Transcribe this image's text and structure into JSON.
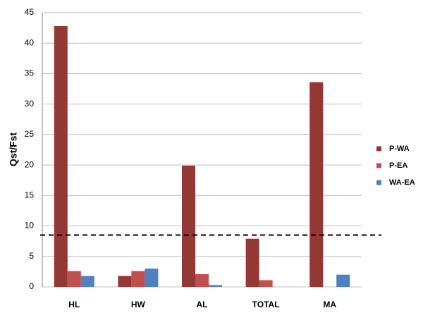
{
  "chart_data": {
    "type": "bar",
    "y_label": "Qst/Fst",
    "categories": [
      "HL",
      "HW",
      "AL",
      "TOTAL",
      "MA"
    ],
    "series": [
      {
        "name": "P-WA",
        "color": "#953735",
        "values": [
          42.8,
          1.8,
          19.9,
          7.9,
          33.6
        ]
      },
      {
        "name": "P-EA",
        "color": "#c0504d",
        "values": [
          2.6,
          2.6,
          2.1,
          1.1,
          0
        ]
      },
      {
        "name": "WA-EA",
        "color": "#4f81bd",
        "values": [
          1.8,
          3.0,
          0.3,
          0,
          2.0
        ]
      }
    ],
    "ylim": [
      0,
      45
    ],
    "yticks": [
      0,
      5,
      10,
      15,
      20,
      25,
      30,
      35,
      40,
      45
    ],
    "grid": true,
    "reference_line": 8.5,
    "legend": "right"
  }
}
